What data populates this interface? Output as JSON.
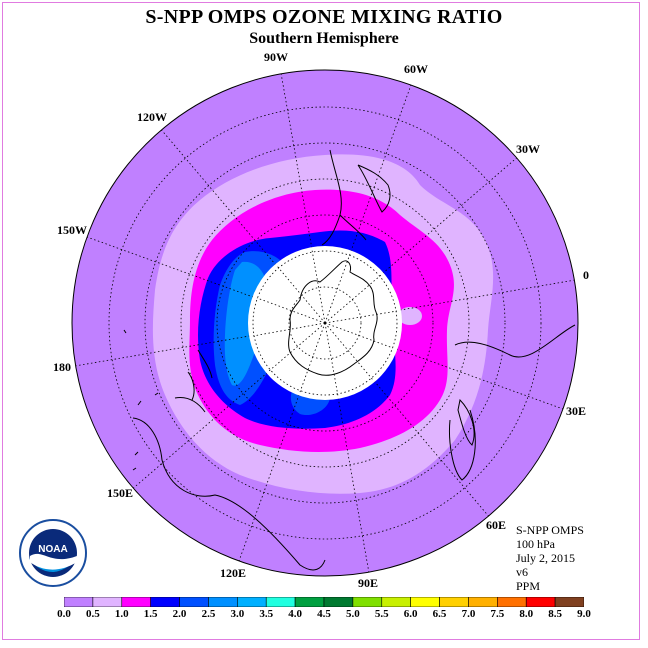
{
  "title": "S-NPP OMPS OZONE MIXING RATIO",
  "subtitle": "Southern Hemisphere",
  "longitude_labels": [
    "90W",
    "60W",
    "30W",
    "0",
    "30E",
    "60E",
    "90E",
    "120E",
    "150E",
    "180",
    "150W",
    "120W"
  ],
  "info": {
    "line1": "S-NPP OMPS",
    "line2": "100 hPa",
    "line3": "July 2, 2015",
    "line4": "v6",
    "line5": "PPM"
  },
  "logo": {
    "text": "NOAA",
    "ring_text": "NATIONAL OCEANIC AND ATMOSPHERIC ADMINISTRATION · U.S. DEPARTMENT OF COMMERCE"
  },
  "colorbar": {
    "ticks": [
      "0.0",
      "0.5",
      "1.0",
      "1.5",
      "2.0",
      "2.5",
      "3.0",
      "3.5",
      "4.0",
      "4.5",
      "5.0",
      "5.5",
      "6.0",
      "6.5",
      "7.0",
      "7.5",
      "8.0",
      "8.5",
      "9.0"
    ],
    "colors": [
      "#c080ff",
      "#e0b4ff",
      "#ff00ff",
      "#0000ff",
      "#0050ff",
      "#0090ff",
      "#00b0ff",
      "#20ffe0",
      "#00a040",
      "#007a30",
      "#80e000",
      "#c8f000",
      "#ffff00",
      "#ffd000",
      "#ffb000",
      "#ff7000",
      "#ff0000",
      "#804020"
    ]
  },
  "colors": {
    "background_fill": "#c080ff",
    "band_0_5": "#e0b4ff",
    "band_1_0": "#ff00ff",
    "band_1_5": "#0000ff",
    "band_2_0": "#0050ff",
    "band_2_5": "#0090ff",
    "frame": "#e07be0"
  }
}
